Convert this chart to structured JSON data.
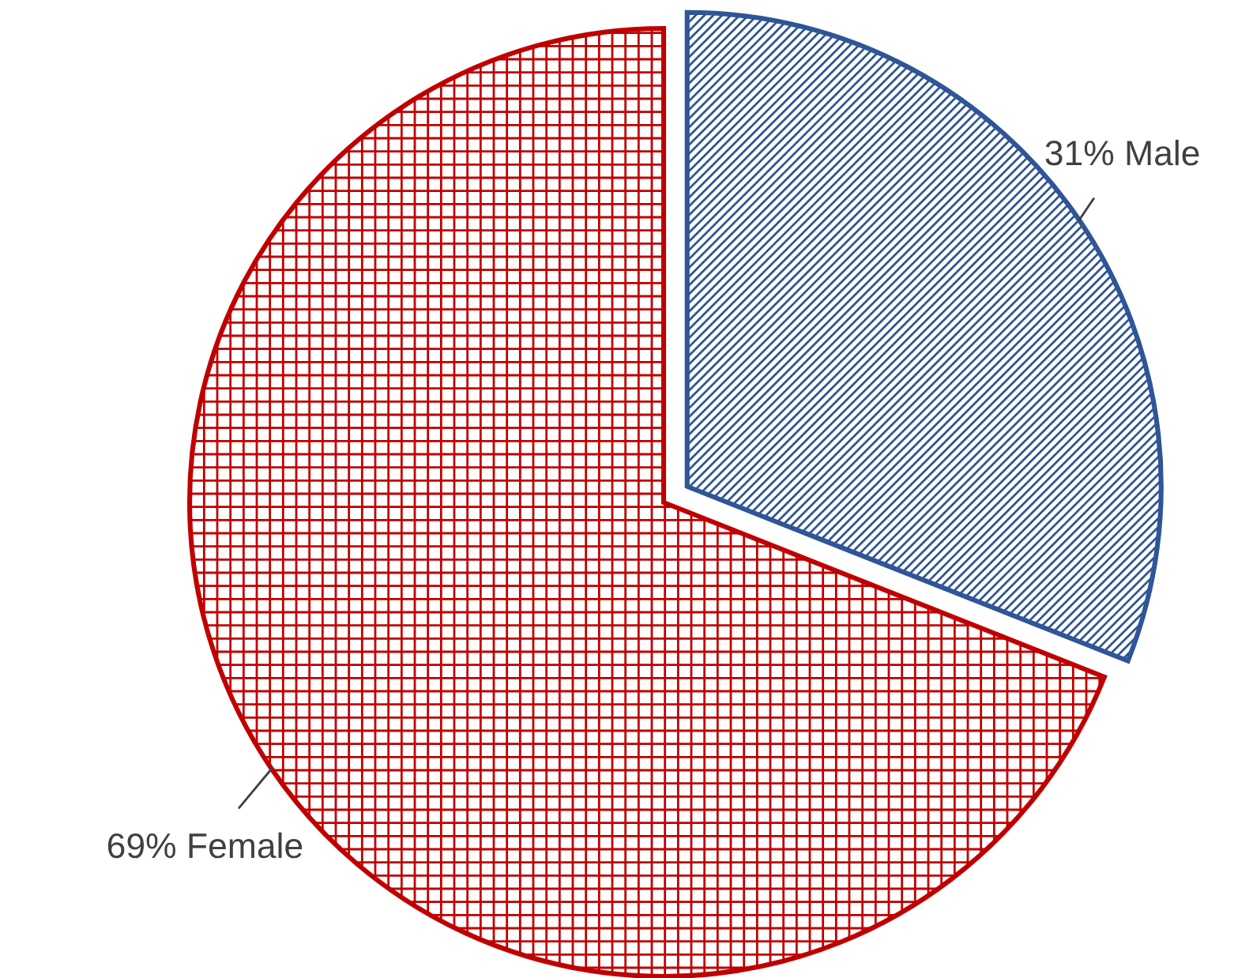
{
  "chart_data": {
    "type": "pie",
    "categories": [
      "Male",
      "Female"
    ],
    "values": [
      31,
      69
    ],
    "colors": [
      "#2f5597",
      "#c00000"
    ],
    "value_labels": [
      "31%",
      "69%"
    ],
    "legend": false
  }
}
